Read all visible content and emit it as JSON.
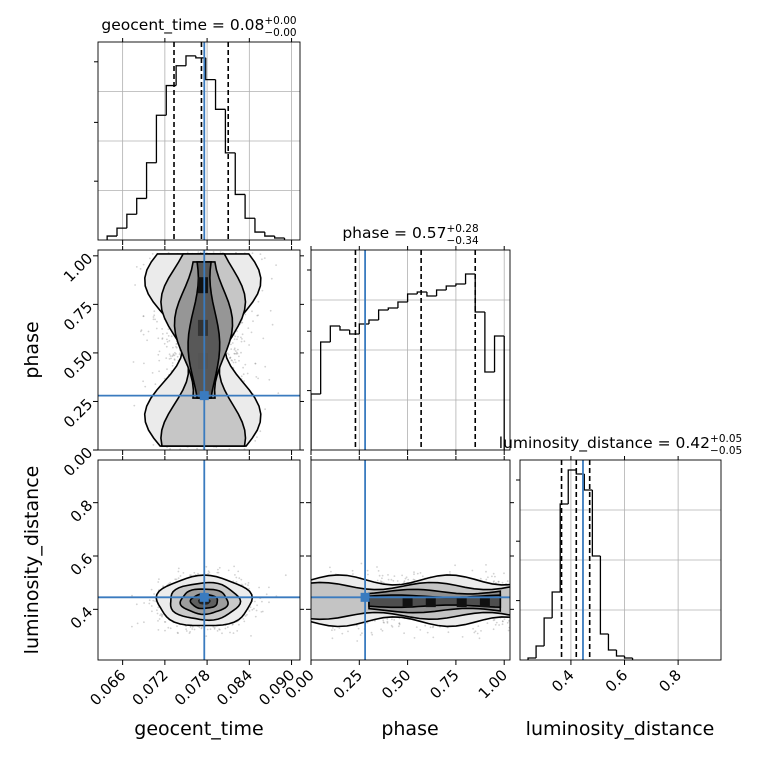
{
  "figure_type": "corner plot",
  "colors": {
    "truth": "#3a7bbf",
    "hist": "#000000",
    "grid": "#b0b0b0",
    "scatter": "#7f7f7f"
  },
  "chart_data": [
    {
      "type": "bar",
      "panel": "geocent_time marginal",
      "title": "geocent_time = 0.08",
      "title_sup": "+0.00",
      "title_sub": "−0.00",
      "xlim": [
        0.0625,
        0.0912
      ],
      "edges": [
        0.0638,
        0.0652,
        0.0666,
        0.068,
        0.0694,
        0.0708,
        0.0722,
        0.0736,
        0.075,
        0.0764,
        0.0778,
        0.0792,
        0.0806,
        0.082,
        0.0834,
        0.0848,
        0.0862,
        0.0876,
        0.089
      ],
      "values": [
        0.02,
        0.06,
        0.13,
        0.21,
        0.39,
        0.63,
        0.78,
        0.88,
        0.93,
        0.92,
        0.81,
        0.66,
        0.44,
        0.23,
        0.11,
        0.04,
        0.02,
        0.01
      ],
      "ylim": [
        0,
        1
      ],
      "quantiles": [
        0.0733,
        0.0772,
        0.081
      ],
      "truth": 0.0776
    },
    {
      "type": "scatter",
      "panel": "phase vs geocent_time",
      "x_param": "geocent_time",
      "y_param": "phase",
      "xlim": [
        0.0625,
        0.0912
      ],
      "ylim": [
        0.0,
        1.03
      ],
      "center_x": 0.0776,
      "spread_x": 0.0035,
      "y_distribution": "broad, mass increasing toward 0.8",
      "truth": [
        0.0776,
        0.28
      ]
    },
    {
      "type": "bar",
      "panel": "phase marginal",
      "title": "phase = 0.57",
      "title_sup": "+0.28",
      "title_sub": "−0.34",
      "xlim": [
        0.0,
        1.03
      ],
      "edges": [
        0.0,
        0.05,
        0.1,
        0.15,
        0.2,
        0.25,
        0.3,
        0.35,
        0.4,
        0.45,
        0.5,
        0.55,
        0.6,
        0.65,
        0.7,
        0.75,
        0.8,
        0.85,
        0.9,
        0.95,
        1.0
      ],
      "values": [
        0.28,
        0.54,
        0.62,
        0.6,
        0.58,
        0.63,
        0.65,
        0.7,
        0.71,
        0.74,
        0.78,
        0.79,
        0.77,
        0.8,
        0.82,
        0.83,
        0.88,
        0.69,
        0.39,
        0.57
      ],
      "ylim": [
        0,
        1
      ],
      "quantiles": [
        0.23,
        0.57,
        0.85
      ],
      "truth": 0.28
    },
    {
      "type": "scatter",
      "panel": "luminosity_distance vs geocent_time",
      "x_param": "geocent_time",
      "y_param": "luminosity_distance",
      "xlim": [
        0.0625,
        0.0912
      ],
      "ylim": [
        0.21,
        0.96
      ],
      "center": [
        0.0776,
        0.43
      ],
      "spread": [
        0.0032,
        0.045
      ],
      "truth": [
        0.0776,
        0.445
      ]
    },
    {
      "type": "scatter",
      "panel": "luminosity_distance vs phase",
      "x_param": "phase",
      "y_param": "luminosity_distance",
      "xlim": [
        0.0,
        1.03
      ],
      "ylim": [
        0.21,
        0.96
      ],
      "center_y": 0.43,
      "spread_y": 0.045,
      "truth": [
        0.28,
        0.445
      ]
    },
    {
      "type": "bar",
      "panel": "luminosity_distance marginal",
      "title": "luminosity_distance = 0.42",
      "title_sup": "+0.05",
      "title_sub": "−0.05",
      "xlim": [
        0.21,
        0.96
      ],
      "edges": [
        0.24,
        0.27,
        0.3,
        0.33,
        0.36,
        0.39,
        0.42,
        0.45,
        0.48,
        0.51,
        0.54,
        0.57,
        0.6,
        0.63
      ],
      "values": [
        0.01,
        0.07,
        0.21,
        0.34,
        0.78,
        0.95,
        0.93,
        0.85,
        0.52,
        0.13,
        0.05,
        0.02,
        0.01
      ],
      "ylim": [
        0,
        1
      ],
      "quantiles": [
        0.365,
        0.42,
        0.47
      ],
      "truth": 0.445
    }
  ],
  "axes": {
    "geocent_time": {
      "label": "geocent_time",
      "ticks": [
        0.066,
        0.072,
        0.078,
        0.084,
        0.09
      ],
      "tick_labels": [
        "0.066",
        "0.072",
        "0.078",
        "0.084",
        "0.090"
      ]
    },
    "phase": {
      "label": "phase",
      "ticks": [
        0.0,
        0.25,
        0.5,
        0.75,
        1.0
      ],
      "tick_labels": [
        "0.00",
        "0.25",
        "0.50",
        "0.75",
        "1.00"
      ]
    },
    "luminosity_distance": {
      "label": "luminosity_distance",
      "ticks": [
        0.4,
        0.6,
        0.8
      ],
      "tick_labels": [
        "0.4",
        "0.6",
        "0.8"
      ]
    }
  }
}
